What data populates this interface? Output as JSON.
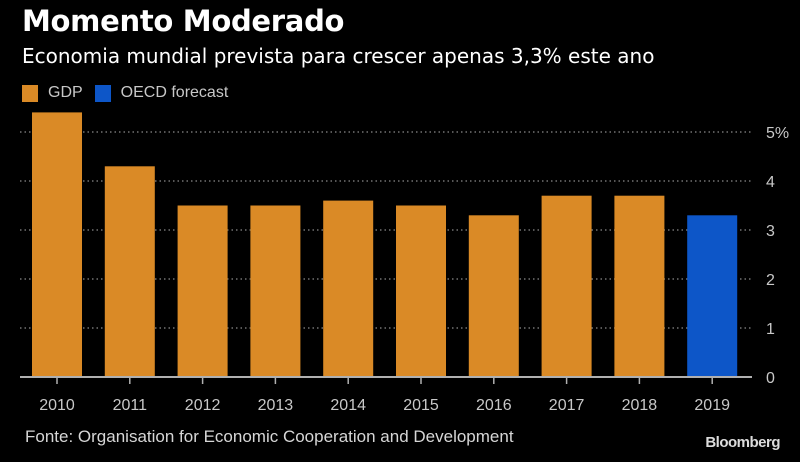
{
  "header": {
    "title": "Momento Moderado",
    "subtitle": "Economia mundial prevista para crescer apenas 3,3% este ano"
  },
  "footer": {
    "source": "Fonte: Organisation for Economic Cooperation and Development",
    "brand": "Bloomberg"
  },
  "colors": {
    "background": "#000000",
    "gdp": "#DA8A26",
    "forecast": "#0D56C8",
    "grid": "#8a8a8a",
    "axis": "#b0b0b0",
    "tick_text": "#c8c8c8"
  },
  "chart_data": {
    "type": "bar",
    "title": "Momento Moderado",
    "subtitle": "Economia mundial prevista para crescer apenas 3,3% este ano",
    "xlabel": "",
    "ylabel": "",
    "categories": [
      "2010",
      "2011",
      "2012",
      "2013",
      "2014",
      "2015",
      "2016",
      "2017",
      "2018",
      "2019"
    ],
    "series": [
      {
        "name": "GDP",
        "color": "#DA8A26",
        "values": [
          5.4,
          4.3,
          3.5,
          3.5,
          3.6,
          3.5,
          3.3,
          3.7,
          3.7,
          null
        ]
      },
      {
        "name": "OECD forecast",
        "color": "#0D56C8",
        "values": [
          null,
          null,
          null,
          null,
          null,
          null,
          null,
          null,
          null,
          3.3
        ]
      }
    ],
    "ylim": [
      0,
      5.5
    ],
    "yticks": [
      0,
      1,
      2,
      3,
      4,
      5
    ],
    "ytick_labels": [
      "0",
      "1",
      "2",
      "3",
      "4",
      "5%"
    ],
    "yaxis_side": "right",
    "grid": "dotted horizontal",
    "legend": {
      "placement": "top-left",
      "entries": [
        "GDP",
        "OECD forecast"
      ]
    },
    "source": "Fonte: Organisation for Economic Cooperation and Development"
  }
}
